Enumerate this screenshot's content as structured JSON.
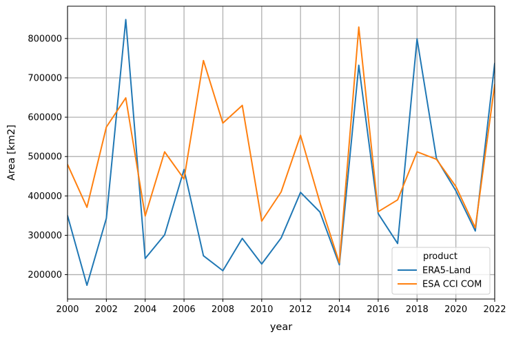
{
  "chart_data": {
    "type": "line",
    "title": "",
    "xlabel": "year",
    "ylabel": "Area [km2]",
    "xlim": [
      2000,
      2022
    ],
    "ylim": [
      138000,
      882000
    ],
    "x_ticks": [
      2000,
      2002,
      2004,
      2006,
      2008,
      2010,
      2012,
      2014,
      2016,
      2018,
      2020,
      2022
    ],
    "y_ticks": [
      200000,
      300000,
      400000,
      500000,
      600000,
      700000,
      800000
    ],
    "grid": true,
    "legend": {
      "title": "product",
      "placement": "lower-right"
    },
    "x": [
      2000,
      2001,
      2002,
      2003,
      2004,
      2005,
      2006,
      2007,
      2008,
      2009,
      2010,
      2011,
      2012,
      2013,
      2014,
      2015,
      2016,
      2017,
      2018,
      2019,
      2020,
      2021,
      2022
    ],
    "series": [
      {
        "name": "ERA5-Land",
        "color": "#1f77b4",
        "values": [
          350000,
          173000,
          343000,
          848000,
          241000,
          301000,
          467000,
          248000,
          210000,
          292000,
          227000,
          293000,
          409000,
          359000,
          225000,
          732000,
          355000,
          279000,
          799000,
          495000,
          413000,
          311000,
          737000
        ]
      },
      {
        "name": "ESA CCI COM",
        "color": "#ff7f0e",
        "values": [
          480000,
          371000,
          575000,
          649000,
          349000,
          512000,
          443000,
          744000,
          585000,
          630000,
          336000,
          410000,
          554000,
          383000,
          230000,
          829000,
          360000,
          390000,
          512000,
          493000,
          424000,
          319000,
          683000
        ]
      }
    ]
  }
}
